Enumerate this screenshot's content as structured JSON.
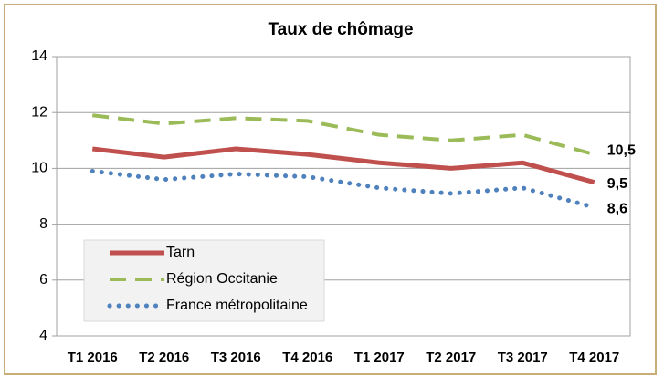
{
  "chart_data": {
    "type": "line",
    "title": "Taux de chômage",
    "categories": [
      "T1 2016",
      "T2 2016",
      "T3 2016",
      "T4 2016",
      "T1 2017",
      "T2 2017",
      "T3 2017",
      "T4 2017"
    ],
    "series": [
      {
        "name": "Tarn",
        "color": "#c0504d",
        "style": "solid",
        "values": [
          10.7,
          10.4,
          10.7,
          10.5,
          10.2,
          10.0,
          10.2,
          9.5
        ],
        "value_labels": [
          null,
          null,
          null,
          null,
          null,
          null,
          null,
          "9,5"
        ]
      },
      {
        "name": "Région Occitanie",
        "color": "#9bbb59",
        "style": "dashed",
        "values": [
          11.9,
          11.6,
          11.8,
          11.7,
          11.2,
          11.0,
          11.2,
          10.5
        ],
        "value_labels": [
          null,
          null,
          null,
          null,
          null,
          null,
          null,
          "10,5"
        ]
      },
      {
        "name": "France métropolitaine",
        "color": "#4f81bd",
        "style": "dotted",
        "values": [
          9.9,
          9.6,
          9.8,
          9.7,
          9.3,
          9.1,
          9.3,
          8.6
        ],
        "value_labels": [
          null,
          null,
          null,
          null,
          null,
          null,
          null,
          "8,6"
        ]
      }
    ],
    "ylim": [
      4,
      14
    ],
    "yticks": [
      4,
      6,
      8,
      10,
      12,
      14
    ],
    "grid": true,
    "legend": "lower left"
  }
}
